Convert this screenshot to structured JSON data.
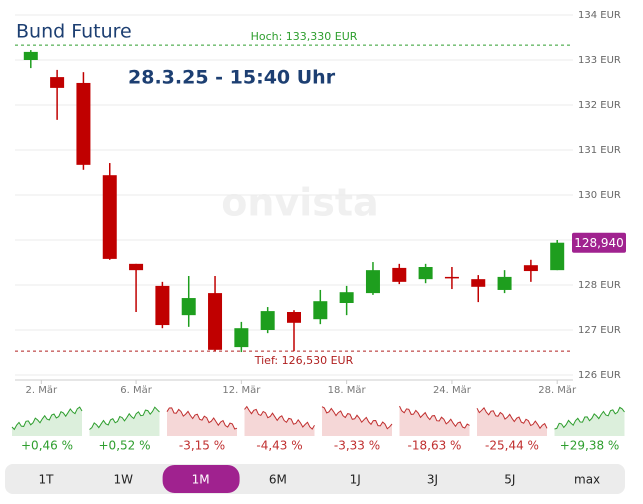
{
  "chart_data": {
    "type": "candlestick",
    "title": "Bund Future",
    "subtitle": "28.3.25 - 15:40 Uhr",
    "watermark": "onvista",
    "x": [
      0,
      1,
      2,
      3,
      4,
      5,
      6,
      7,
      8,
      9,
      10,
      11,
      12,
      13,
      14,
      15,
      16,
      17,
      18,
      19,
      20
    ],
    "open": [
      133.0,
      132.62,
      132.49,
      130.44,
      128.47,
      127.98,
      127.33,
      127.82,
      126.62,
      127.0,
      127.4,
      127.24,
      127.6,
      127.82,
      128.38,
      128.13,
      128.18,
      128.13,
      127.89,
      128.44,
      128.33
    ],
    "high": [
      133.22,
      132.78,
      132.73,
      130.71,
      128.47,
      128.07,
      128.2,
      128.2,
      127.18,
      127.51,
      127.44,
      127.89,
      127.98,
      128.51,
      128.47,
      128.47,
      128.4,
      128.22,
      128.33,
      128.56,
      129.0
    ],
    "low": [
      132.82,
      131.67,
      130.56,
      128.56,
      127.4,
      127.04,
      127.07,
      126.53,
      126.51,
      126.93,
      126.53,
      127.13,
      127.33,
      127.78,
      128.02,
      128.04,
      127.91,
      127.62,
      127.82,
      128.07,
      128.33
    ],
    "close": [
      133.18,
      132.38,
      130.67,
      128.58,
      128.33,
      127.11,
      127.71,
      126.56,
      127.04,
      127.42,
      127.16,
      127.64,
      127.84,
      128.33,
      128.07,
      128.4,
      128.16,
      127.96,
      128.18,
      128.31,
      128.94
    ],
    "up_color": "#1e9e1e",
    "down_color": "#c00000",
    "xlim": [
      -0.6,
      20.6
    ],
    "xticks": [
      {
        "value": 0.4,
        "label": "2. Mär"
      },
      {
        "value": 4,
        "label": "6. Mär"
      },
      {
        "value": 8,
        "label": "12. Mär"
      },
      {
        "value": 12,
        "label": "18. Mär"
      },
      {
        "value": 16,
        "label": "24. Mär"
      },
      {
        "value": 20,
        "label": "28. Mär"
      }
    ],
    "ylim": [
      126,
      134
    ],
    "yticks": [
      {
        "value": 126,
        "label": "126 EUR"
      },
      {
        "value": 127,
        "label": "127 EUR"
      },
      {
        "value": 128,
        "label": "128 EUR"
      },
      {
        "value": 129,
        "label": "129 EUR"
      },
      {
        "value": 130,
        "label": "130 EUR"
      },
      {
        "value": 131,
        "label": "131 EUR"
      },
      {
        "value": 132,
        "label": "132 EUR"
      },
      {
        "value": 133,
        "label": "133 EUR"
      },
      {
        "value": 134,
        "label": "134 EUR"
      }
    ],
    "grid": true,
    "high_line": {
      "value": 133.33,
      "label": "Hoch: 133,330 EUR",
      "color": "#2e9e2e"
    },
    "low_line": {
      "value": 126.53,
      "label": "Tief: 126,530 EUR",
      "color": "#b02020"
    },
    "last_price": {
      "value": 128.94,
      "label": "128,940",
      "color": "#a0228f"
    }
  },
  "performance": [
    {
      "label": "+0,46 %",
      "color": "#2e9e2e"
    },
    {
      "label": "+0,52 %",
      "color": "#2e9e2e"
    },
    {
      "label": "-3,15 %",
      "color": "#c03030"
    },
    {
      "label": "-4,43 %",
      "color": "#c03030"
    },
    {
      "label": "-3,33 %",
      "color": "#c03030"
    },
    {
      "label": "-18,63 %",
      "color": "#c03030"
    },
    {
      "label": "-25,44 %",
      "color": "#c03030"
    },
    {
      "label": "+29,38 %",
      "color": "#2e9e2e"
    }
  ],
  "periods": {
    "items": [
      "1T",
      "1W",
      "1M",
      "6M",
      "1J",
      "3J",
      "5J",
      "max"
    ],
    "active": 2,
    "active_color": "#a0228f"
  }
}
